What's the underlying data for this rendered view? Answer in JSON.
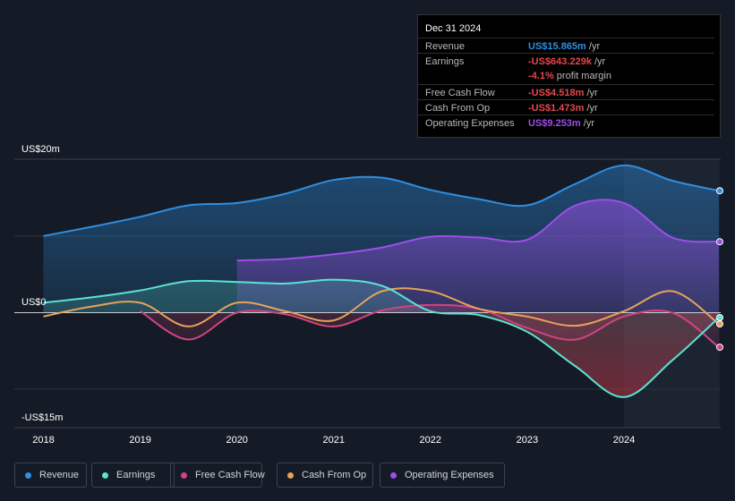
{
  "chart_data": {
    "type": "area",
    "y_axis_labels": {
      "top": "US$20m",
      "zero": "US$0",
      "bottom": "-US$15m"
    },
    "ylim": [
      -15,
      20
    ],
    "x_ticks": [
      "2018",
      "2019",
      "2020",
      "2021",
      "2022",
      "2023",
      "2024"
    ],
    "x_tick_values": [
      2018,
      2019,
      2020,
      2021,
      2022,
      2023,
      2024
    ],
    "xlim": [
      2017.7,
      2024.99
    ],
    "forecast_start": 2024.0,
    "series": [
      {
        "name": "Revenue",
        "color": "#2e8fe3",
        "fill": true,
        "points": [
          [
            2018.0,
            10.0
          ],
          [
            2018.5,
            11.2
          ],
          [
            2019.0,
            12.5
          ],
          [
            2019.5,
            14.0
          ],
          [
            2020.0,
            14.3
          ],
          [
            2020.5,
            15.5
          ],
          [
            2021.0,
            17.3
          ],
          [
            2021.5,
            17.6
          ],
          [
            2022.0,
            16.0
          ],
          [
            2022.5,
            14.8
          ],
          [
            2023.0,
            14.0
          ],
          [
            2023.5,
            16.8
          ],
          [
            2024.0,
            19.2
          ],
          [
            2024.5,
            17.2
          ],
          [
            2024.98,
            15.9
          ]
        ]
      },
      {
        "name": "Earnings",
        "color": "#5ae3d0",
        "fill": true,
        "points": [
          [
            2018.0,
            1.3
          ],
          [
            2018.5,
            2.0
          ],
          [
            2019.0,
            2.9
          ],
          [
            2019.5,
            4.1
          ],
          [
            2020.0,
            4.0
          ],
          [
            2020.5,
            3.8
          ],
          [
            2021.0,
            4.3
          ],
          [
            2021.5,
            3.5
          ],
          [
            2022.0,
            0.2
          ],
          [
            2022.5,
            -0.3
          ],
          [
            2023.0,
            -2.5
          ],
          [
            2023.5,
            -7.0
          ],
          [
            2024.0,
            -11.0
          ],
          [
            2024.5,
            -6.2
          ],
          [
            2024.98,
            -0.64
          ]
        ]
      },
      {
        "name": "Free Cash Flow",
        "color": "#d2447f",
        "fill": true,
        "points": [
          [
            2019.0,
            0.2
          ],
          [
            2019.5,
            -3.5
          ],
          [
            2020.0,
            0.0
          ],
          [
            2020.5,
            -0.2
          ],
          [
            2021.0,
            -1.8
          ],
          [
            2021.5,
            0.3
          ],
          [
            2022.0,
            1.0
          ],
          [
            2022.5,
            0.5
          ],
          [
            2023.0,
            -2.0
          ],
          [
            2023.5,
            -3.5
          ],
          [
            2024.0,
            -0.5
          ],
          [
            2024.5,
            0.0
          ],
          [
            2024.98,
            -4.5
          ]
        ]
      },
      {
        "name": "Cash From Op",
        "color": "#e6a35b",
        "fill": false,
        "points": [
          [
            2018.0,
            -0.5
          ],
          [
            2018.5,
            0.8
          ],
          [
            2019.0,
            1.3
          ],
          [
            2019.5,
            -1.8
          ],
          [
            2020.0,
            1.3
          ],
          [
            2020.5,
            0.2
          ],
          [
            2021.0,
            -1.0
          ],
          [
            2021.5,
            2.8
          ],
          [
            2022.0,
            2.8
          ],
          [
            2022.5,
            0.5
          ],
          [
            2023.0,
            -0.5
          ],
          [
            2023.5,
            -1.7
          ],
          [
            2024.0,
            0.2
          ],
          [
            2024.5,
            2.8
          ],
          [
            2024.98,
            -1.47
          ]
        ]
      },
      {
        "name": "Operating Expenses",
        "color": "#9d4ee8",
        "fill": true,
        "points": [
          [
            2020.0,
            6.8
          ],
          [
            2020.5,
            7.0
          ],
          [
            2021.0,
            7.6
          ],
          [
            2021.5,
            8.5
          ],
          [
            2022.0,
            9.9
          ],
          [
            2022.5,
            9.8
          ],
          [
            2023.0,
            9.5
          ],
          [
            2023.5,
            14.0
          ],
          [
            2024.0,
            14.3
          ],
          [
            2024.5,
            9.8
          ],
          [
            2024.98,
            9.25
          ]
        ]
      }
    ]
  },
  "tooltip": {
    "date": "Dec 31 2024",
    "rows": [
      {
        "label": "Revenue",
        "value": "US$15.865m",
        "unit": "/yr",
        "color": "#2e8fe3"
      },
      {
        "label": "Earnings",
        "value": "-US$643.229k",
        "unit": "/yr",
        "color": "#e5484d"
      },
      {
        "label": "",
        "value": "-4.1%",
        "unit": "profit margin",
        "color": "#e5484d"
      },
      {
        "label": "Free Cash Flow",
        "value": "-US$4.518m",
        "unit": "/yr",
        "color": "#e5484d"
      },
      {
        "label": "Cash From Op",
        "value": "-US$1.473m",
        "unit": "/yr",
        "color": "#e5484d"
      },
      {
        "label": "Operating Expenses",
        "value": "US$9.253m",
        "unit": "/yr",
        "color": "#9d4ee8"
      }
    ]
  },
  "legend": [
    {
      "label": "Revenue",
      "color": "#2e8fe3"
    },
    {
      "label": "Earnings",
      "color": "#5ae3d0"
    },
    {
      "label": "Free Cash Flow",
      "color": "#d2447f"
    },
    {
      "label": "Cash From Op",
      "color": "#e6a35b"
    },
    {
      "label": "Operating Expenses",
      "color": "#9d4ee8"
    }
  ]
}
